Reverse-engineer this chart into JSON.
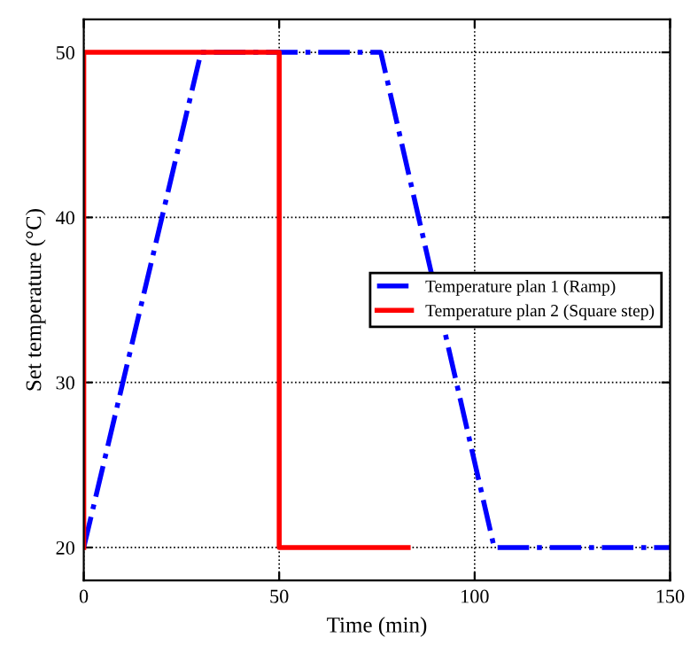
{
  "chart_data": {
    "type": "line",
    "xlabel": "Time (min)",
    "ylabel": "Set temperature (°C)",
    "series": [
      {
        "name": "Temperature plan 1 (Ramp)",
        "color": "#0000ff",
        "x": [
          0,
          30,
          76,
          105,
          150
        ],
        "values": [
          20,
          50,
          50,
          20,
          20
        ],
        "line_style": "dashdot"
      },
      {
        "name": "Temperature plan 2 (Square step)",
        "color": "#ff0000",
        "x": [
          0,
          0,
          50,
          50,
          83
        ],
        "values": [
          20,
          50,
          50,
          20,
          20
        ],
        "line_style": "solid"
      }
    ],
    "xlim": [
      0,
      150
    ],
    "xticks": [
      0,
      50,
      100,
      150
    ],
    "ylim": [
      18,
      52
    ],
    "yticks": [
      20,
      30,
      40,
      50
    ],
    "grid": true,
    "legend": "right",
    "marker": "none"
  }
}
